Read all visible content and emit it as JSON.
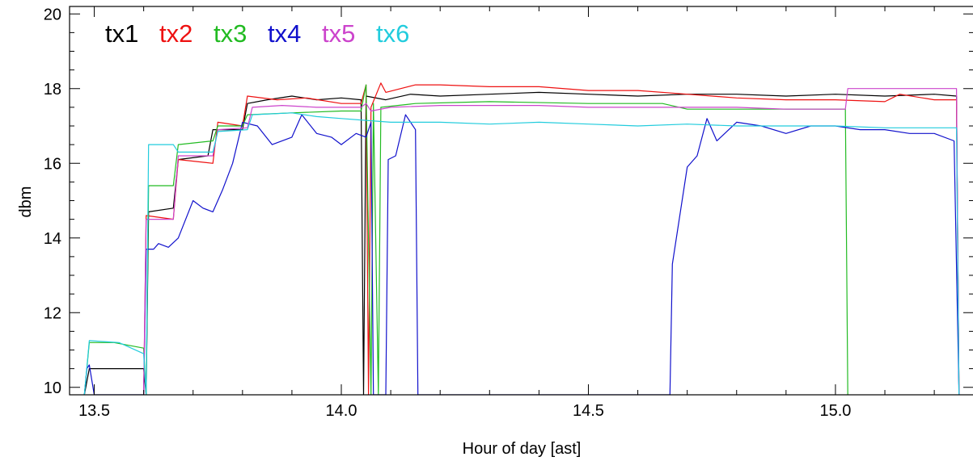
{
  "chart_data": {
    "type": "line",
    "title": "",
    "xlabel": "Hour of day [ast]",
    "ylabel": "dbm",
    "xlim": [
      13.45,
      15.28
    ],
    "ylim": [
      9.8,
      20.2
    ],
    "x_ticks": [
      "13.5",
      "14.0",
      "14.5",
      "15.0"
    ],
    "x_tick_values": [
      13.5,
      14.0,
      14.5,
      15.0
    ],
    "y_ticks": [
      "10",
      "12",
      "14",
      "16",
      "18",
      "20"
    ],
    "y_tick_values": [
      10,
      12,
      14,
      16,
      18,
      20
    ],
    "legend_placement": "top-left",
    "grid": false,
    "series": [
      {
        "name": "tx1",
        "color": "#000000",
        "points": [
          [
            13.48,
            9.8
          ],
          [
            13.49,
            10.5
          ],
          [
            13.53,
            10.5
          ],
          [
            13.6,
            10.5
          ],
          [
            13.605,
            9.8
          ],
          [
            13.61,
            14.7
          ],
          [
            13.66,
            14.8
          ],
          [
            13.67,
            16.1
          ],
          [
            13.73,
            16.2
          ],
          [
            13.74,
            16.9
          ],
          [
            13.8,
            16.9
          ],
          [
            13.81,
            17.6
          ],
          [
            13.85,
            17.7
          ],
          [
            13.9,
            17.8
          ],
          [
            13.95,
            17.7
          ],
          [
            14.0,
            17.75
          ],
          [
            14.04,
            17.7
          ],
          [
            14.045,
            9.8
          ],
          [
            14.05,
            17.8
          ],
          [
            14.09,
            17.7
          ],
          [
            14.14,
            17.85
          ],
          [
            14.2,
            17.8
          ],
          [
            14.3,
            17.85
          ],
          [
            14.4,
            17.9
          ],
          [
            14.5,
            17.85
          ],
          [
            14.6,
            17.8
          ],
          [
            14.7,
            17.85
          ],
          [
            14.8,
            17.85
          ],
          [
            14.9,
            17.8
          ],
          [
            15.0,
            17.85
          ],
          [
            15.1,
            17.8
          ],
          [
            15.2,
            17.85
          ],
          [
            15.245,
            17.8
          ],
          [
            15.25,
            9.8
          ]
        ]
      },
      {
        "name": "tx2",
        "color": "#ee1111",
        "points": [
          [
            13.6,
            9.8
          ],
          [
            13.605,
            14.6
          ],
          [
            13.66,
            14.5
          ],
          [
            13.67,
            16.1
          ],
          [
            13.74,
            16.0
          ],
          [
            13.75,
            17.1
          ],
          [
            13.8,
            17.0
          ],
          [
            13.81,
            17.8
          ],
          [
            13.87,
            17.7
          ],
          [
            13.93,
            17.75
          ],
          [
            14.0,
            17.6
          ],
          [
            14.04,
            17.6
          ],
          [
            14.05,
            18.1
          ],
          [
            14.055,
            9.8
          ],
          [
            14.06,
            17.5
          ],
          [
            14.08,
            18.15
          ],
          [
            14.09,
            17.9
          ],
          [
            14.15,
            18.1
          ],
          [
            14.2,
            18.1
          ],
          [
            14.3,
            18.05
          ],
          [
            14.4,
            18.05
          ],
          [
            14.5,
            17.95
          ],
          [
            14.6,
            17.95
          ],
          [
            14.7,
            17.85
          ],
          [
            14.8,
            17.75
          ],
          [
            14.9,
            17.7
          ],
          [
            15.0,
            17.7
          ],
          [
            15.1,
            17.65
          ],
          [
            15.13,
            17.85
          ],
          [
            15.2,
            17.7
          ],
          [
            15.245,
            17.7
          ],
          [
            15.25,
            9.8
          ]
        ]
      },
      {
        "name": "tx3",
        "color": "#22bb22",
        "points": [
          [
            13.48,
            9.8
          ],
          [
            13.49,
            11.2
          ],
          [
            13.54,
            11.2
          ],
          [
            13.6,
            11.05
          ],
          [
            13.605,
            9.8
          ],
          [
            13.61,
            15.4
          ],
          [
            13.66,
            15.4
          ],
          [
            13.67,
            16.5
          ],
          [
            13.74,
            16.6
          ],
          [
            13.75,
            17.0
          ],
          [
            13.8,
            17.0
          ],
          [
            13.81,
            17.3
          ],
          [
            13.9,
            17.35
          ],
          [
            14.0,
            17.4
          ],
          [
            14.04,
            17.4
          ],
          [
            14.05,
            18.1
          ],
          [
            14.06,
            9.8
          ],
          [
            14.065,
            17.6
          ],
          [
            14.075,
            9.8
          ],
          [
            14.08,
            17.5
          ],
          [
            14.15,
            17.6
          ],
          [
            14.3,
            17.65
          ],
          [
            14.5,
            17.6
          ],
          [
            14.65,
            17.6
          ],
          [
            14.7,
            17.45
          ],
          [
            14.8,
            17.45
          ],
          [
            14.9,
            17.45
          ],
          [
            15.02,
            17.45
          ],
          [
            15.025,
            9.8
          ]
        ]
      },
      {
        "name": "tx4",
        "color": "#1111cc",
        "points": [
          [
            13.48,
            9.8
          ],
          [
            13.485,
            10.5
          ],
          [
            13.49,
            10.6
          ],
          [
            13.5,
            9.8
          ],
          [
            13.6,
            9.8
          ],
          [
            13.605,
            13.7
          ],
          [
            13.62,
            13.7
          ],
          [
            13.63,
            13.85
          ],
          [
            13.65,
            13.75
          ],
          [
            13.67,
            14.0
          ],
          [
            13.7,
            15.0
          ],
          [
            13.72,
            14.8
          ],
          [
            13.74,
            14.7
          ],
          [
            13.76,
            15.3
          ],
          [
            13.78,
            16.0
          ],
          [
            13.8,
            17.1
          ],
          [
            13.83,
            17.0
          ],
          [
            13.86,
            16.5
          ],
          [
            13.9,
            16.7
          ],
          [
            13.92,
            17.3
          ],
          [
            13.95,
            16.8
          ],
          [
            13.98,
            16.7
          ],
          [
            14.0,
            16.5
          ],
          [
            14.03,
            16.8
          ],
          [
            14.05,
            16.7
          ],
          [
            14.06,
            17.1
          ],
          [
            14.065,
            9.8
          ],
          [
            14.09,
            9.8
          ],
          [
            14.095,
            16.1
          ],
          [
            14.11,
            16.2
          ],
          [
            14.13,
            17.3
          ],
          [
            14.15,
            16.9
          ],
          [
            14.155,
            9.8
          ],
          [
            14.665,
            9.8
          ],
          [
            14.67,
            13.3
          ],
          [
            14.7,
            15.9
          ],
          [
            14.72,
            16.2
          ],
          [
            14.74,
            17.2
          ],
          [
            14.76,
            16.6
          ],
          [
            14.8,
            17.1
          ],
          [
            14.85,
            17.0
          ],
          [
            14.9,
            16.8
          ],
          [
            14.95,
            17.0
          ],
          [
            15.0,
            17.0
          ],
          [
            15.05,
            16.9
          ],
          [
            15.1,
            16.9
          ],
          [
            15.15,
            16.8
          ],
          [
            15.2,
            16.8
          ],
          [
            15.24,
            16.6
          ],
          [
            15.25,
            9.8
          ]
        ]
      },
      {
        "name": "tx5",
        "color": "#cc44cc",
        "points": [
          [
            13.6,
            9.8
          ],
          [
            13.605,
            14.5
          ],
          [
            13.66,
            14.5
          ],
          [
            13.67,
            16.2
          ],
          [
            13.74,
            16.2
          ],
          [
            13.75,
            16.9
          ],
          [
            13.81,
            16.95
          ],
          [
            13.82,
            17.5
          ],
          [
            13.88,
            17.55
          ],
          [
            13.95,
            17.5
          ],
          [
            14.0,
            17.5
          ],
          [
            14.04,
            17.5
          ],
          [
            14.05,
            17.6
          ],
          [
            14.06,
            17.4
          ],
          [
            14.1,
            17.5
          ],
          [
            14.2,
            17.55
          ],
          [
            14.3,
            17.55
          ],
          [
            14.4,
            17.55
          ],
          [
            14.5,
            17.5
          ],
          [
            14.6,
            17.5
          ],
          [
            14.7,
            17.5
          ],
          [
            14.8,
            17.5
          ],
          [
            14.9,
            17.45
          ],
          [
            15.0,
            17.45
          ],
          [
            15.02,
            17.45
          ],
          [
            15.025,
            18.0
          ],
          [
            15.1,
            18.0
          ],
          [
            15.2,
            18.0
          ],
          [
            15.245,
            18.0
          ],
          [
            15.25,
            9.8
          ]
        ]
      },
      {
        "name": "tx6",
        "color": "#22ccdd",
        "points": [
          [
            13.48,
            9.8
          ],
          [
            13.49,
            11.25
          ],
          [
            13.55,
            11.2
          ],
          [
            13.6,
            10.9
          ],
          [
            13.605,
            9.8
          ],
          [
            13.61,
            16.5
          ],
          [
            13.66,
            16.5
          ],
          [
            13.67,
            16.3
          ],
          [
            13.74,
            16.3
          ],
          [
            13.75,
            16.85
          ],
          [
            13.81,
            16.9
          ],
          [
            13.82,
            17.3
          ],
          [
            13.9,
            17.35
          ],
          [
            13.95,
            17.25
          ],
          [
            14.0,
            17.2
          ],
          [
            14.05,
            17.15
          ],
          [
            14.1,
            17.1
          ],
          [
            14.2,
            17.1
          ],
          [
            14.3,
            17.05
          ],
          [
            14.4,
            17.1
          ],
          [
            14.5,
            17.05
          ],
          [
            14.6,
            17.0
          ],
          [
            14.7,
            17.05
          ],
          [
            14.8,
            17.0
          ],
          [
            14.9,
            17.0
          ],
          [
            15.0,
            17.0
          ],
          [
            15.1,
            16.95
          ],
          [
            15.2,
            16.95
          ],
          [
            15.245,
            16.95
          ],
          [
            15.25,
            9.8
          ]
        ]
      }
    ]
  }
}
